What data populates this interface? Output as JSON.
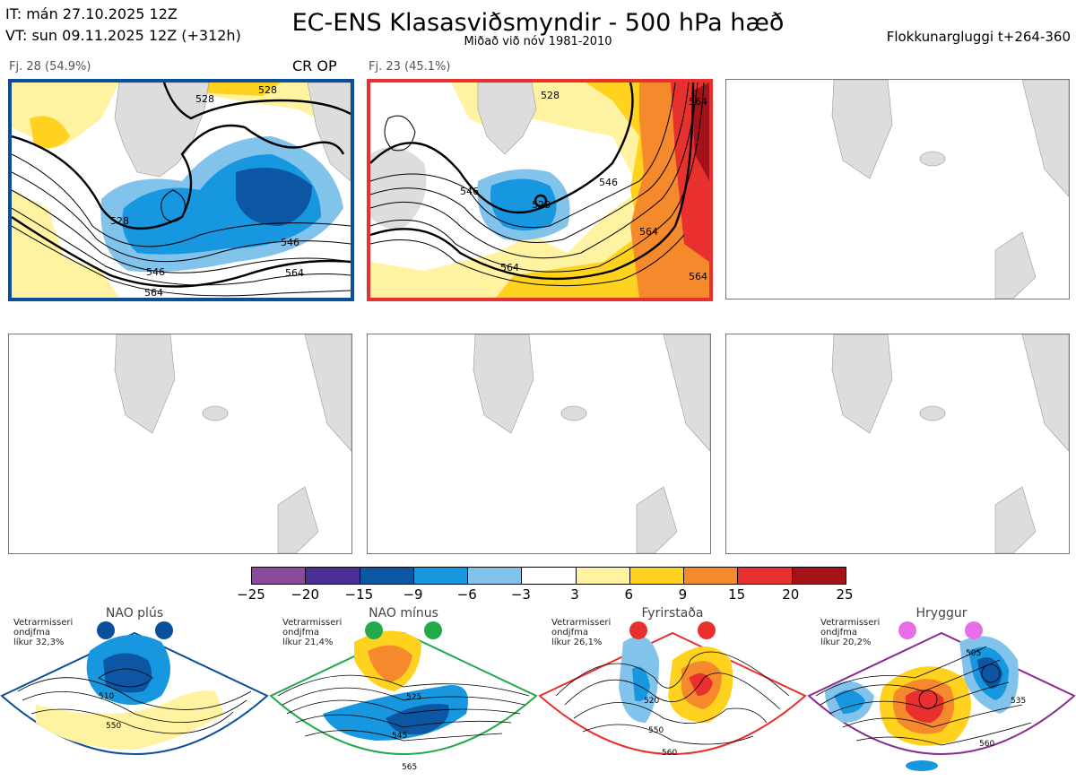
{
  "header": {
    "it_line": "IT: mán 27.10.2025 12Z",
    "vt_line": "VT: sun 09.11.2025 12Z  (+312h)",
    "title": "EC-ENS Klasasviðsmyndir - 500 hPa hæð",
    "subtitle": "Miðað við nóv 1981-2010",
    "window": "Flokkunargluggi t+264-360"
  },
  "clusters": [
    {
      "label": "Fj. 28 (54.9%)",
      "tags": "CR OP",
      "border_color": "#0b4f9c",
      "contours": [
        "528",
        "528",
        "528",
        "546",
        "546",
        "564",
        "564"
      ]
    },
    {
      "label": "Fj. 23 (45.1%)",
      "tags": "",
      "border_color": "#e8302f",
      "contours": [
        "528",
        "528",
        "546",
        "546",
        "564",
        "564",
        "564",
        "564"
      ]
    }
  ],
  "colorbar": {
    "colors": [
      "#8b4a9b",
      "#4a2f94",
      "#0c56a3",
      "#1797df",
      "#82c3ec",
      "#ffffff",
      "#fff2a0",
      "#ffd21f",
      "#f58a2c",
      "#e8302f",
      "#a5121a"
    ],
    "ticks": [
      "−25",
      "−20",
      "−15",
      "−9",
      "−6",
      "−3",
      "3",
      "6",
      "9",
      "15",
      "20",
      "25"
    ]
  },
  "regimes": [
    {
      "name": "NAO plús",
      "meta1": "Vetrarmisseri",
      "meta2": "ondjfma",
      "meta3": "líkur 32,3%",
      "color": "#0b4f9c",
      "contours": [
        "510",
        "550"
      ]
    },
    {
      "name": "NAO mínus",
      "meta1": "Vetrarmisseri",
      "meta2": "ondjfma",
      "meta3": "líkur 21,4%",
      "color": "#22a94a",
      "contours": [
        "525",
        "545",
        "565"
      ]
    },
    {
      "name": "Fyrirstaða",
      "meta1": "Vetrarmisseri",
      "meta2": "ondjfma",
      "meta3": "líkur 26,1%",
      "color": "#e8302f",
      "contours": [
        "520",
        "550",
        "560"
      ]
    },
    {
      "name": "Hryggur",
      "meta1": "Vetrarmisseri",
      "meta2": "ondjfma",
      "meta3": "líkur 20,2%",
      "color": "#8b2a8f",
      "contours": [
        "505",
        "535",
        "560"
      ]
    }
  ]
}
